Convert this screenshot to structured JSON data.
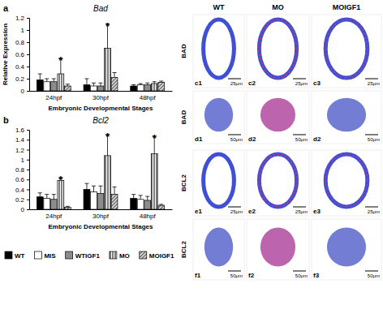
{
  "chart_data": [
    {
      "type": "bar",
      "label": "a",
      "title": "Bad",
      "x_label": "Embryonic Developmental Stages",
      "y_label": "Relative Expression",
      "categories": [
        "24hpf",
        "30hpf",
        "48hpf"
      ],
      "series": [
        {
          "name": "WT",
          "color": "#000000",
          "marker": "solid",
          "values": [
            0.18,
            0.1,
            0.08
          ],
          "errors": [
            0.1,
            0.1,
            0.02
          ]
        },
        {
          "name": "MIS",
          "color": "#ffffff",
          "marker": "solid",
          "values": [
            0.15,
            0.08,
            0.1
          ],
          "errors": [
            0.05,
            0.05,
            0.02
          ]
        },
        {
          "name": "WTIGF1",
          "color": "#8c8c8c",
          "marker": "solid",
          "values": [
            0.15,
            0.08,
            0.1
          ],
          "errors": [
            0.05,
            0.05,
            0.03
          ]
        },
        {
          "name": "MO",
          "color": "#000000",
          "marker": "vertical-hatch",
          "values": [
            0.28,
            0.7,
            0.12
          ],
          "errors": [
            0.25,
            0.4,
            0.03
          ]
        },
        {
          "name": "MOIGF1",
          "color": "#000000",
          "marker": "diagonal-hatch",
          "values": [
            0.08,
            0.22,
            0.14
          ],
          "errors": [
            0.03,
            0.08,
            0.02
          ]
        }
      ],
      "annotations": [
        {
          "text": "*",
          "x": "24hpf",
          "series": "MO"
        },
        {
          "text": "*",
          "x": "30hpf",
          "series": "MO"
        }
      ],
      "ylim": [
        0,
        1.2
      ],
      "yticks": [
        0,
        0.2,
        0.4,
        0.6,
        0.8,
        1,
        1.2
      ],
      "grid": false
    },
    {
      "type": "bar",
      "label": "b",
      "title": "Bcl2",
      "x_label": "Embryonic Developmental Stages",
      "categories": [
        "24hpf",
        "30hpf",
        "48hpf"
      ],
      "series": [
        {
          "name": "WT",
          "color": "#000000",
          "marker": "solid",
          "values": [
            0.25,
            0.4,
            0.22
          ],
          "errors": [
            0.08,
            0.12,
            0.08
          ]
        },
        {
          "name": "MIS",
          "color": "#ffffff",
          "marker": "solid",
          "values": [
            0.22,
            0.35,
            0.2
          ],
          "errors": [
            0.08,
            0.12,
            0.08
          ]
        },
        {
          "name": "WTIGF1",
          "color": "#8c8c8c",
          "marker": "solid",
          "values": [
            0.2,
            0.32,
            0.18
          ],
          "errors": [
            0.1,
            0.15,
            0.08
          ]
        },
        {
          "name": "MO",
          "color": "#000000",
          "marker": "vertical-hatch",
          "values": [
            0.58,
            1.08,
            1.12
          ],
          "errors": [
            0.05,
            0.42,
            0.35
          ]
        },
        {
          "name": "MOIGF1",
          "color": "#000000",
          "marker": "diagonal-hatch",
          "values": [
            0.04,
            0.3,
            0.08
          ],
          "errors": [
            0.02,
            0.15,
            0.02
          ]
        }
      ],
      "annotations": [
        {
          "text": "*",
          "x": "24hpf",
          "series": "MO"
        },
        {
          "text": "*",
          "x": "30hpf",
          "series": "MO"
        },
        {
          "text": "*",
          "x": "48hpf",
          "series": "MO"
        }
      ],
      "ylim": [
        0,
        1.6
      ],
      "yticks": [
        0,
        0.2,
        0.4,
        0.6,
        0.8,
        1,
        1.2,
        1.4,
        1.6
      ],
      "grid": false,
      "legend": "bottom"
    }
  ],
  "image_panels": {
    "columns": [
      "WT",
      "MO",
      "MOIGF1"
    ],
    "rows": [
      {
        "label": "BAD",
        "panels": [
          "c1",
          "c2",
          "c3"
        ],
        "scale_bar": "25μm",
        "shape": "loop"
      },
      {
        "label": "BAD",
        "panels": [
          "d1",
          "d2",
          "d2"
        ],
        "scale_bar": "50μm",
        "shape": "blob"
      },
      {
        "label": "BCL2",
        "panels": [
          "e1",
          "e2",
          "e3"
        ],
        "scale_bar": "25μm",
        "shape": "loop"
      },
      {
        "label": "BCL2",
        "panels": [
          "f1",
          "f2",
          "f3"
        ],
        "scale_bar": "50μm",
        "shape": "blob"
      }
    ]
  }
}
